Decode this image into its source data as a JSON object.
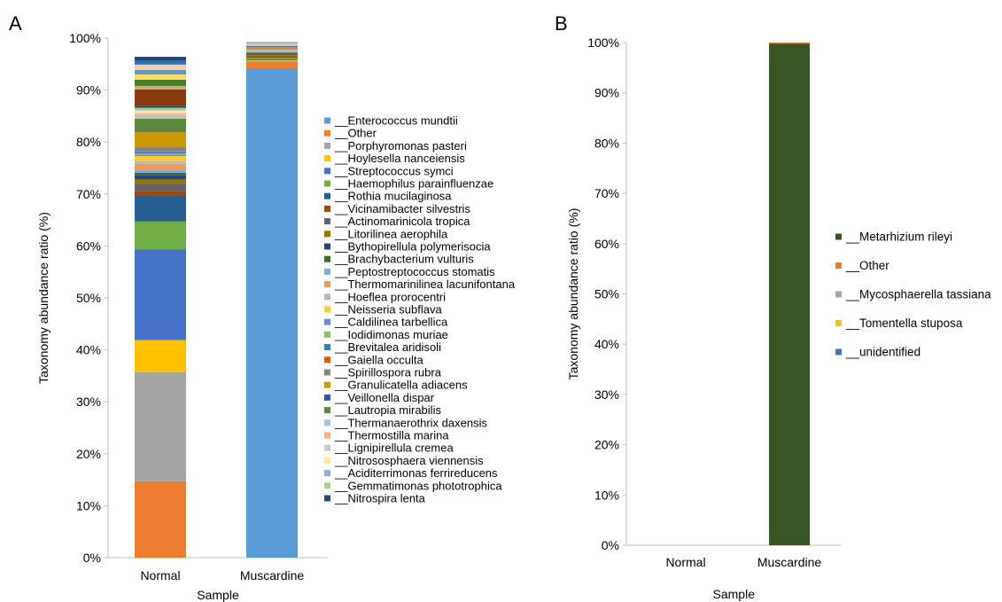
{
  "panel_labels": [
    "A",
    "B"
  ],
  "chart_data": [
    {
      "type": "bar",
      "stacked": true,
      "panel": "A",
      "title": "",
      "xlabel": "Sample",
      "ylabel": "Taxonomy abundance ratio (%)",
      "ylim": [
        0,
        100
      ],
      "yticks": [
        "0%",
        "10%",
        "20%",
        "30%",
        "40%",
        "50%",
        "60%",
        "70%",
        "80%",
        "90%",
        "100%"
      ],
      "categories": [
        "Normal",
        "Muscardine"
      ],
      "grid": false,
      "legend_position": "right",
      "series": [
        {
          "name": "__Enterococcus mundtii",
          "color": "#5B9BD5",
          "values": [
            0,
            94.2
          ]
        },
        {
          "name": "__Other",
          "color": "#ED7D31",
          "values": [
            14.7,
            1.2
          ]
        },
        {
          "name": "__Porphyromonas pasteri",
          "color": "#A5A5A5",
          "values": [
            21.0,
            0.2
          ]
        },
        {
          "name": "__Hoylesella nanceiensis",
          "color": "#FFC000",
          "values": [
            6.2,
            0.1
          ]
        },
        {
          "name": "__Streptococcus symci",
          "color": "#4472C4",
          "values": [
            17.4,
            0.2
          ]
        },
        {
          "name": "__Haemophilus parainfluenzae",
          "color": "#70AD47",
          "values": [
            5.4,
            0.2
          ]
        },
        {
          "name": "__Rothia mucilaginosa",
          "color": "#255E91",
          "values": [
            5.0,
            0.1
          ]
        },
        {
          "name": "__Vicinamibacter silvestris",
          "color": "#9E480E",
          "values": [
            0.8,
            0.2
          ]
        },
        {
          "name": "__Actinomarinicola tropica",
          "color": "#636363",
          "values": [
            1.5,
            0.2
          ]
        },
        {
          "name": "__Litorilinea aerophila",
          "color": "#997300",
          "values": [
            0.8,
            0.2
          ]
        },
        {
          "name": "__Bythopirellula polymerisocia",
          "color": "#264478",
          "values": [
            0.8,
            0.2
          ]
        },
        {
          "name": "__Brachybacterium vulturis",
          "color": "#43682B",
          "values": [
            0.5,
            0.2
          ]
        },
        {
          "name": "__Peptostreptococcus stomatis",
          "color": "#7CAFDD",
          "values": [
            0.5,
            0.2
          ]
        },
        {
          "name": "__Thermomarinilinea lacunifontana",
          "color": "#F1975A",
          "values": [
            1.2,
            0.1
          ]
        },
        {
          "name": "__Hoeflea prorocentri",
          "color": "#B7B7B7",
          "values": [
            0.5,
            0.1
          ]
        },
        {
          "name": "__Neisseria subflava",
          "color": "#FFCD33",
          "values": [
            1.0,
            0.1
          ]
        },
        {
          "name": "__Caldilinea tarbellica",
          "color": "#698ED0",
          "values": [
            0.3,
            0.1
          ]
        },
        {
          "name": "__Iodidimonas muriae",
          "color": "#8CC168",
          "values": [
            0.2,
            0.1
          ]
        },
        {
          "name": "__Brevitalea aridisoli",
          "color": "#327DC2",
          "values": [
            0.2,
            0.1
          ]
        },
        {
          "name": "__Gaiella occulta",
          "color": "#D26012",
          "values": [
            0.2,
            0.1
          ]
        },
        {
          "name": "__Spirillospora rubra",
          "color": "#848484",
          "values": [
            0.8,
            0.1
          ]
        },
        {
          "name": "__Granulicatella adiacens",
          "color": "#CC9A00",
          "values": [
            3.0,
            0.1
          ]
        },
        {
          "name": "__Veillonella dispar",
          "color": "#335AA1",
          "values": [
            0.2,
            0.1
          ]
        },
        {
          "name": "__Lautropia mirabilis",
          "color": "#5A8A39",
          "values": [
            2.3,
            0.1
          ]
        },
        {
          "name": "__Thermanaerothrix daxensis",
          "color": "#9DC3E6",
          "values": [
            0.3,
            0.1
          ]
        },
        {
          "name": "__Thermostilla marina",
          "color": "#F4B183",
          "values": [
            0.5,
            0.1
          ]
        },
        {
          "name": "__Lignipirellula cremea",
          "color": "#C9C9C9",
          "values": [
            0.3,
            0.1
          ]
        },
        {
          "name": "__Nitrososphaera viennensis",
          "color": "#FFE699",
          "values": [
            0.5,
            0.1
          ]
        },
        {
          "name": "__Aciditerrimonas ferrireducens",
          "color": "#8FAADC",
          "values": [
            0.2,
            0.1
          ]
        },
        {
          "name": "__Gemmatimonas phototrophica",
          "color": "#A9D18E",
          "values": [
            0.3,
            0.1
          ]
        },
        {
          "name": "__Nitrospira lenta",
          "color": "#1F4E79",
          "values": [
            0.3,
            0.1
          ]
        },
        {
          "name": "",
          "color": "#8B3A0F",
          "values": [
            3.2,
            0
          ]
        },
        {
          "name": "",
          "color": "#D6A77A",
          "values": [
            0.7,
            0
          ]
        },
        {
          "name": "",
          "color": "#4A7A2C",
          "values": [
            1.2,
            0
          ]
        },
        {
          "name": "",
          "color": "#FFD966",
          "values": [
            1.0,
            0
          ]
        },
        {
          "name": "",
          "color": "#5B9BD5",
          "values": [
            0.9,
            0
          ]
        },
        {
          "name": "",
          "color": "#F8CBAD",
          "values": [
            1.0,
            0
          ]
        },
        {
          "name": "",
          "color": "#2E75B6",
          "values": [
            0.7,
            0
          ]
        },
        {
          "name": "",
          "color": "#264478",
          "values": [
            0.8,
            0
          ]
        }
      ]
    },
    {
      "type": "bar",
      "stacked": true,
      "panel": "B",
      "title": "",
      "xlabel": "Sample",
      "ylabel": "Taxonomy abundance ratio (%)",
      "ylim": [
        0,
        100
      ],
      "yticks": [
        "0%",
        "10%",
        "20%",
        "30%",
        "40%",
        "50%",
        "60%",
        "70%",
        "80%",
        "90%",
        "100%"
      ],
      "categories": [
        "Normal",
        "Muscardine"
      ],
      "grid": false,
      "legend_position": "right",
      "series": [
        {
          "name": "__Metarhizium rileyi",
          "color": "#375623",
          "values": [
            0,
            99.8
          ]
        },
        {
          "name": "__Other",
          "color": "#ED7D31",
          "values": [
            0,
            0.2
          ]
        },
        {
          "name": "__Mycosphaerella tassiana",
          "color": "#A5A5A5",
          "values": [
            0,
            0.0
          ]
        },
        {
          "name": "__Tomentella stuposa",
          "color": "#FFC000",
          "values": [
            0,
            0.0
          ]
        },
        {
          "name": "__unidentified",
          "color": "#4472C4",
          "values": [
            0,
            0.0
          ]
        }
      ]
    }
  ]
}
